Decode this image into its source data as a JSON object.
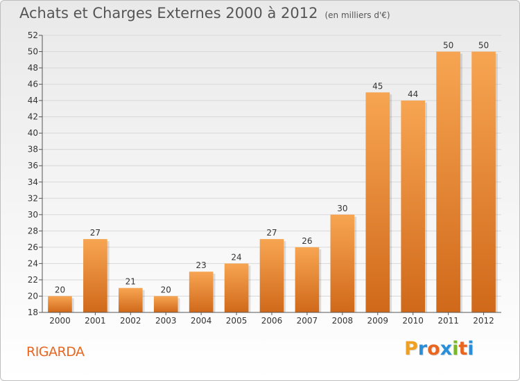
{
  "title": "Achats et Charges Externes 2000 à 2012",
  "subtitle": "(en milliers d'€)",
  "place": "RIGARDA",
  "logo": {
    "letters": [
      {
        "char": "P",
        "color": "#f0a020"
      },
      {
        "char": "r",
        "color": "#2a8fd8"
      },
      {
        "char": "o",
        "color": "#e8661f"
      },
      {
        "char": "x",
        "color": "#2a8fd8"
      },
      {
        "char": "i",
        "color": "#7ab829"
      },
      {
        "char": "t",
        "color": "#e8661f"
      },
      {
        "char": "i",
        "color": "#2a8fd8"
      }
    ]
  },
  "colors": {
    "bar_top": "#f7a552",
    "bar_bottom": "#d0691a",
    "place": "#e8661f"
  },
  "chart_data": {
    "type": "bar",
    "categories": [
      "2000",
      "2001",
      "2002",
      "2003",
      "2004",
      "2005",
      "2006",
      "2007",
      "2008",
      "2009",
      "2010",
      "2011",
      "2012"
    ],
    "values": [
      20,
      27,
      21,
      20,
      23,
      24,
      27,
      26,
      30,
      45,
      44,
      50,
      50
    ],
    "title": "Achats et Charges Externes 2000 à 2012",
    "subtitle": "(en milliers d'€)",
    "xlabel": "",
    "ylabel": "",
    "ylim": [
      18,
      52
    ],
    "yticks": [
      18,
      20,
      22,
      24,
      26,
      28,
      30,
      32,
      34,
      36,
      38,
      40,
      42,
      44,
      46,
      48,
      50,
      52
    ],
    "grid": true
  }
}
